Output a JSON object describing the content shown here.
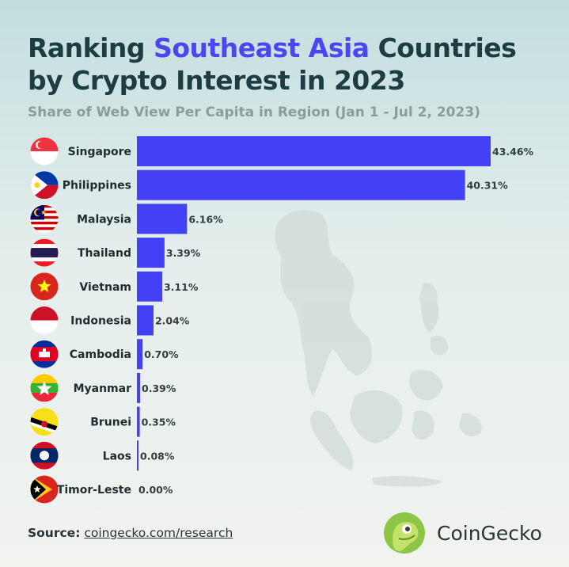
{
  "header": {
    "title_part1": "Ranking ",
    "title_highlight": "Southeast Asia",
    "title_part2": " Countries",
    "title_line2": "by Crypto Interest in 2023",
    "subtitle": "Share of Web View Per Capita in Region (Jan 1 - Jul 2, 2023)"
  },
  "colors": {
    "bar": "#4241f5",
    "highlight": "#4a47f2",
    "title": "#1c3d42"
  },
  "chart_data": {
    "type": "bar",
    "orientation": "horizontal",
    "categories": [
      "Singapore",
      "Philippines",
      "Malaysia",
      "Thailand",
      "Vietnam",
      "Indonesia",
      "Cambodia",
      "Myanmar",
      "Brunei",
      "Laos",
      "Timor-Leste"
    ],
    "values": [
      43.46,
      40.31,
      6.16,
      3.39,
      3.11,
      2.04,
      0.7,
      0.39,
      0.35,
      0.08,
      0.0
    ],
    "value_labels": [
      "43.46%",
      "40.31%",
      "6.16%",
      "3.39%",
      "3.11%",
      "2.04%",
      "0.70%",
      "0.39%",
      "0.35%",
      "0.08%",
      "0.00%"
    ],
    "flags": [
      "singapore-flag-icon",
      "philippines-flag-icon",
      "malaysia-flag-icon",
      "thailand-flag-icon",
      "vietnam-flag-icon",
      "indonesia-flag-icon",
      "cambodia-flag-icon",
      "myanmar-flag-icon",
      "brunei-flag-icon",
      "laos-flag-icon",
      "timor-leste-flag-icon"
    ],
    "title": "Ranking Southeast Asia Countries by Crypto Interest in 2023",
    "subtitle": "Share of Web View Per Capita in Region (Jan 1 - Jul 2, 2023)",
    "xlim": [
      0,
      43.46
    ],
    "grid": false
  },
  "footer": {
    "source_label": "Source:",
    "source_link": "coingecko.com/research",
    "brand": "CoinGecko"
  }
}
